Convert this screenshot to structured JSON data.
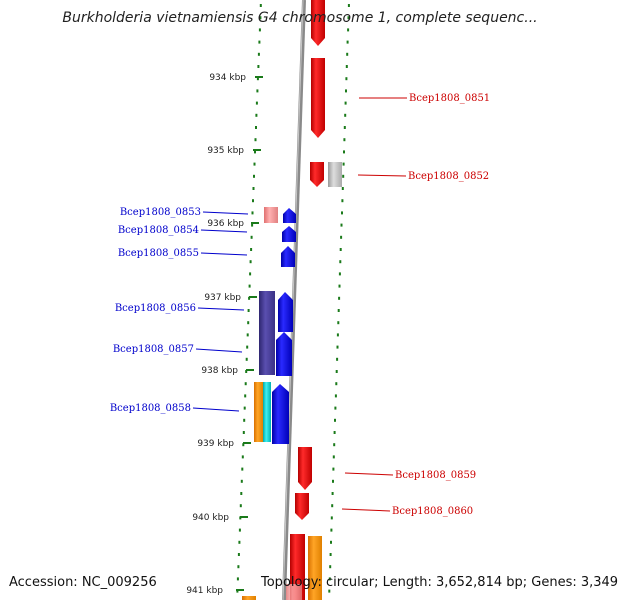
{
  "title": "Burkholderia vietnamiensis G4 chromosome 1, complete sequenc...",
  "accession": "Accession: NC_009256",
  "topology": "Topology: circular; Length: 3,652,814 bp; Genes: 3,349",
  "colors": {
    "backbone": "#888888",
    "tick": "#1a7a1a",
    "forward_label": "#cc0000",
    "reverse_label": "#0000cc"
  },
  "ticks": [
    "934 kbp",
    "935 kbp",
    "936 kbp",
    "937 kbp",
    "938 kbp",
    "939 kbp",
    "940 kbp",
    "941 kbp"
  ],
  "forward_genes": [
    "Bcep1808_0851",
    "Bcep1808_0852",
    "Bcep1808_0859",
    "Bcep1808_0860"
  ],
  "reverse_genes": [
    "Bcep1808_0853",
    "Bcep1808_0854",
    "Bcep1808_0855",
    "Bcep1808_0856",
    "Bcep1808_0857",
    "Bcep1808_0858"
  ]
}
